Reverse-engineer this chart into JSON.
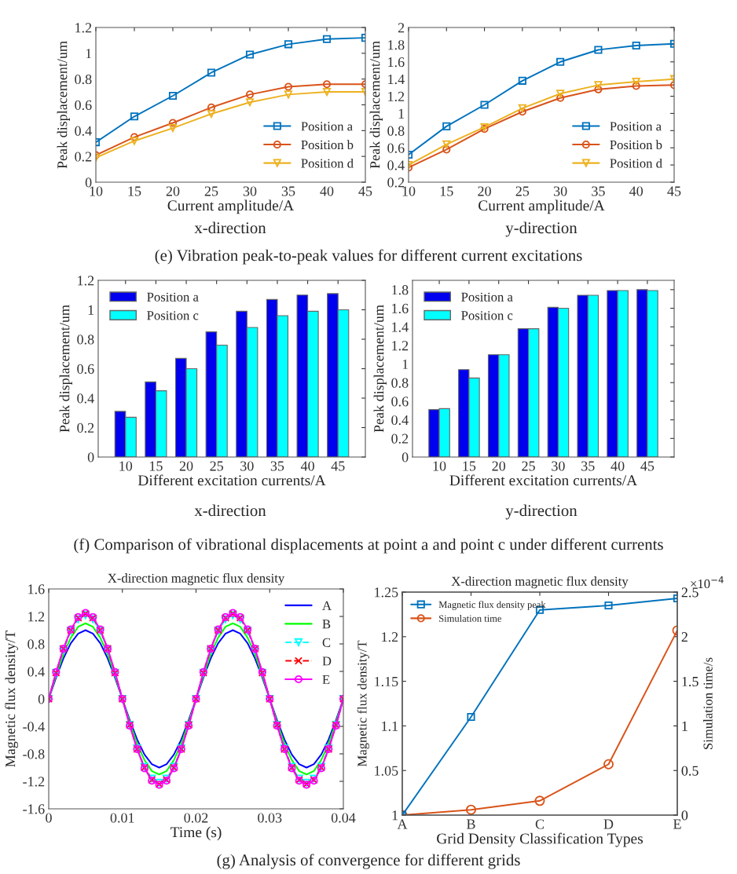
{
  "chart_data": [
    {
      "type": "line",
      "xlabel": "Current amplitude/A",
      "ylabel": "Peak displacement/um",
      "x": [
        10,
        15,
        20,
        25,
        30,
        35,
        40,
        45
      ],
      "xlim": [
        10,
        45
      ],
      "xticks": [
        10,
        15,
        20,
        25,
        30,
        35,
        40,
        45
      ],
      "ylim": [
        0,
        1.2
      ],
      "yticks": [
        0,
        0.2,
        0.4,
        0.6,
        0.8,
        1,
        1.2
      ],
      "legend": "bottom right",
      "annotations": [
        "x-direction"
      ],
      "series": [
        {
          "name": "Position a",
          "color": "#0072bd",
          "marker": "square",
          "values": [
            0.31,
            0.51,
            0.67,
            0.85,
            0.99,
            1.07,
            1.11,
            1.12
          ]
        },
        {
          "name": "Position b",
          "color": "#d95319",
          "marker": "circle",
          "values": [
            0.21,
            0.35,
            0.46,
            0.58,
            0.68,
            0.74,
            0.76,
            0.76
          ]
        },
        {
          "name": "Position d",
          "color": "#edb120",
          "marker": "triangle",
          "values": [
            0.19,
            0.32,
            0.42,
            0.53,
            0.62,
            0.68,
            0.7,
            0.7
          ]
        }
      ]
    },
    {
      "type": "line",
      "xlabel": "Current amplitude/A",
      "ylabel": "Peak displacement/um",
      "x": [
        10,
        15,
        20,
        25,
        30,
        35,
        40,
        45
      ],
      "xlim": [
        10,
        45
      ],
      "xticks": [
        10,
        15,
        20,
        25,
        30,
        35,
        40,
        45
      ],
      "ylim": [
        0.2,
        2
      ],
      "yticks": [
        0.2,
        0.4,
        0.6,
        0.8,
        1,
        1.2,
        1.4,
        1.6,
        1.8,
        2
      ],
      "legend": "bottom right",
      "annotations": [
        "y-direction",
        "(e) Vibration peak-to-peak values for different current excitations"
      ],
      "series": [
        {
          "name": "Position a",
          "color": "#0072bd",
          "marker": "square",
          "values": [
            0.52,
            0.85,
            1.1,
            1.38,
            1.6,
            1.74,
            1.79,
            1.81
          ]
        },
        {
          "name": "Position b",
          "color": "#d95319",
          "marker": "circle",
          "values": [
            0.37,
            0.58,
            0.82,
            1.02,
            1.18,
            1.28,
            1.32,
            1.33
          ]
        },
        {
          "name": "Position d",
          "color": "#edb120",
          "marker": "triangle",
          "values": [
            0.4,
            0.64,
            0.84,
            1.06,
            1.23,
            1.33,
            1.37,
            1.4
          ]
        }
      ]
    },
    {
      "type": "bar",
      "xlabel": "Different excitation currents/A",
      "ylabel": "Peak displacement/um",
      "categories": [
        "10",
        "15",
        "20",
        "25",
        "30",
        "35",
        "40",
        "45"
      ],
      "ylim": [
        0,
        1.2
      ],
      "yticks": [
        0,
        0.2,
        0.4,
        0.6,
        0.8,
        1,
        1.2
      ],
      "legend": "top left",
      "annotations": [
        "x-direction"
      ],
      "series": [
        {
          "name": "Position a",
          "color": "#0000ee",
          "values": [
            0.31,
            0.51,
            0.67,
            0.85,
            0.99,
            1.07,
            1.1,
            1.11
          ]
        },
        {
          "name": "Position c",
          "color": "#00ffff",
          "values": [
            0.27,
            0.45,
            0.6,
            0.76,
            0.88,
            0.96,
            0.99,
            1.0
          ]
        }
      ]
    },
    {
      "type": "bar",
      "xlabel": "Different excitation currents/A",
      "ylabel": "Peak displacement/um",
      "categories": [
        "10",
        "15",
        "20",
        "25",
        "30",
        "35",
        "40",
        "45"
      ],
      "ylim": [
        0,
        1.9
      ],
      "yticks": [
        0,
        0.2,
        0.4,
        0.6,
        0.8,
        1,
        1.2,
        1.4,
        1.6,
        1.8
      ],
      "legend": "top left",
      "annotations": [
        "y-direction",
        "(f) Comparison of vibrational displacements at point a and point c under different currents"
      ],
      "series": [
        {
          "name": "Position a",
          "color": "#0000ee",
          "values": [
            0.51,
            0.94,
            1.1,
            1.38,
            1.61,
            1.74,
            1.79,
            1.8
          ]
        },
        {
          "name": "Position c",
          "color": "#00ffff",
          "values": [
            0.52,
            0.85,
            1.1,
            1.38,
            1.6,
            1.74,
            1.79,
            1.79
          ]
        }
      ]
    },
    {
      "type": "line",
      "title": "X-direction magnetic flux density",
      "xlabel": "Time (s)",
      "ylabel": "Magnetic flux density/T",
      "x": [
        0,
        0.001,
        0.002,
        0.003,
        0.004,
        0.005,
        0.006,
        0.007,
        0.008,
        0.009,
        0.01,
        0.011,
        0.012,
        0.013,
        0.014,
        0.015,
        0.016,
        0.017,
        0.018,
        0.019,
        0.02,
        0.021,
        0.022,
        0.023,
        0.024,
        0.025,
        0.026,
        0.027,
        0.028,
        0.029,
        0.03,
        0.031,
        0.032,
        0.033,
        0.034,
        0.035,
        0.036,
        0.037,
        0.038,
        0.039,
        0.04
      ],
      "xlim": [
        0,
        0.04
      ],
      "xticks": [
        0,
        0.01,
        0.02,
        0.03,
        0.04
      ],
      "ylim": [
        -1.6,
        1.6
      ],
      "yticks": [
        -1.6,
        -1.2,
        -0.8,
        -0.4,
        0,
        0.4,
        0.8,
        1.2,
        1.6
      ],
      "legend": "top right",
      "series": [
        {
          "name": "A",
          "color": "#0000ff",
          "marker": "none",
          "line_style": "solid",
          "values": [
            0,
            0.31,
            0.59,
            0.81,
            0.95,
            1,
            0.95,
            0.81,
            0.59,
            0.31,
            0,
            -0.31,
            -0.59,
            -0.81,
            -0.95,
            -1,
            -0.95,
            -0.81,
            -0.59,
            -0.31,
            0,
            0.31,
            0.59,
            0.81,
            0.95,
            1,
            0.95,
            0.81,
            0.59,
            0.31,
            0,
            -0.31,
            -0.59,
            -0.81,
            -0.95,
            -1,
            -0.95,
            -0.81,
            -0.59,
            -0.31,
            0
          ]
        },
        {
          "name": "B",
          "color": "#00ff00",
          "marker": "none",
          "line_style": "solid",
          "values": [
            0,
            0.34,
            0.65,
            0.89,
            1.05,
            1.1,
            1.05,
            0.89,
            0.65,
            0.34,
            0,
            -0.34,
            -0.65,
            -0.89,
            -1.05,
            -1.1,
            -1.05,
            -0.89,
            -0.65,
            -0.34,
            0,
            0.34,
            0.65,
            0.89,
            1.05,
            1.1,
            1.05,
            0.89,
            0.65,
            0.34,
            0,
            -0.34,
            -0.65,
            -0.89,
            -1.05,
            -1.1,
            -1.05,
            -0.89,
            -0.65,
            -0.34,
            0
          ]
        },
        {
          "name": "C",
          "color": "#00ffff",
          "marker": "triangle",
          "line_style": "dashed",
          "values": [
            0,
            0.38,
            0.72,
            0.99,
            1.16,
            1.22,
            1.16,
            0.99,
            0.72,
            0.38,
            0,
            -0.38,
            -0.72,
            -0.99,
            -1.16,
            -1.22,
            -1.16,
            -0.99,
            -0.72,
            -0.38,
            0,
            0.38,
            0.72,
            0.99,
            1.16,
            1.22,
            1.16,
            0.99,
            0.72,
            0.38,
            0,
            -0.38,
            -0.72,
            -0.99,
            -1.16,
            -1.22,
            -1.16,
            -0.99,
            -0.72,
            -0.38,
            0
          ]
        },
        {
          "name": "D",
          "color": "#ff0000",
          "marker": "cross",
          "line_style": "dashed",
          "values": [
            0,
            0.38,
            0.73,
            1,
            1.18,
            1.24,
            1.18,
            1,
            0.73,
            0.38,
            0,
            -0.38,
            -0.73,
            -1,
            -1.18,
            -1.24,
            -1.18,
            -1,
            -0.73,
            -0.38,
            0,
            0.38,
            0.73,
            1,
            1.18,
            1.24,
            1.18,
            1,
            0.73,
            0.38,
            0,
            -0.38,
            -0.73,
            -1,
            -1.18,
            -1.24,
            -1.18,
            -1,
            -0.73,
            -0.38,
            0
          ]
        },
        {
          "name": "E",
          "color": "#ff00ff",
          "marker": "circle",
          "line_style": "solid",
          "values": [
            0,
            0.39,
            0.73,
            1.01,
            1.19,
            1.25,
            1.19,
            1.01,
            0.73,
            0.39,
            0,
            -0.39,
            -0.73,
            -1.01,
            -1.19,
            -1.25,
            -1.19,
            -1.01,
            -0.73,
            -0.39,
            0,
            0.39,
            0.73,
            1.01,
            1.19,
            1.25,
            1.19,
            1.01,
            0.73,
            0.39,
            0,
            -0.39,
            -0.73,
            -1.01,
            -1.19,
            -1.25,
            -1.19,
            -1.01,
            -0.73,
            -0.39,
            0
          ]
        }
      ]
    },
    {
      "type": "line",
      "title": "X-direction magnetic flux density",
      "xlabel": "Grid Density Classification Types",
      "ylabel": "Magnetic flux density/T",
      "y2label": "Simulation time/s",
      "categories": [
        "A",
        "B",
        "C",
        "D",
        "E"
      ],
      "ylim": [
        1,
        1.25
      ],
      "yticks": [
        1,
        1.05,
        1.1,
        1.15,
        1.2,
        1.25
      ],
      "y2lim": [
        0,
        2.5
      ],
      "y2ticks": [
        0,
        0.5,
        1,
        1.5,
        2,
        2.5
      ],
      "legend": "top left",
      "annotations": [
        "×10$^{−4}$",
        "(g) Analysis of convergence for different grids"
      ],
      "series": [
        {
          "name": "Magnetic flux density peak",
          "color": "#0072bd",
          "marker": "square",
          "values": [
            1.0,
            1.11,
            1.23,
            1.235,
            1.243
          ]
        },
        {
          "name": "Simulation time",
          "color": "#d95319",
          "marker": "circle",
          "axis": "y2",
          "values": [
            0.0,
            0.06,
            0.16,
            0.57,
            2.07
          ]
        }
      ]
    }
  ]
}
